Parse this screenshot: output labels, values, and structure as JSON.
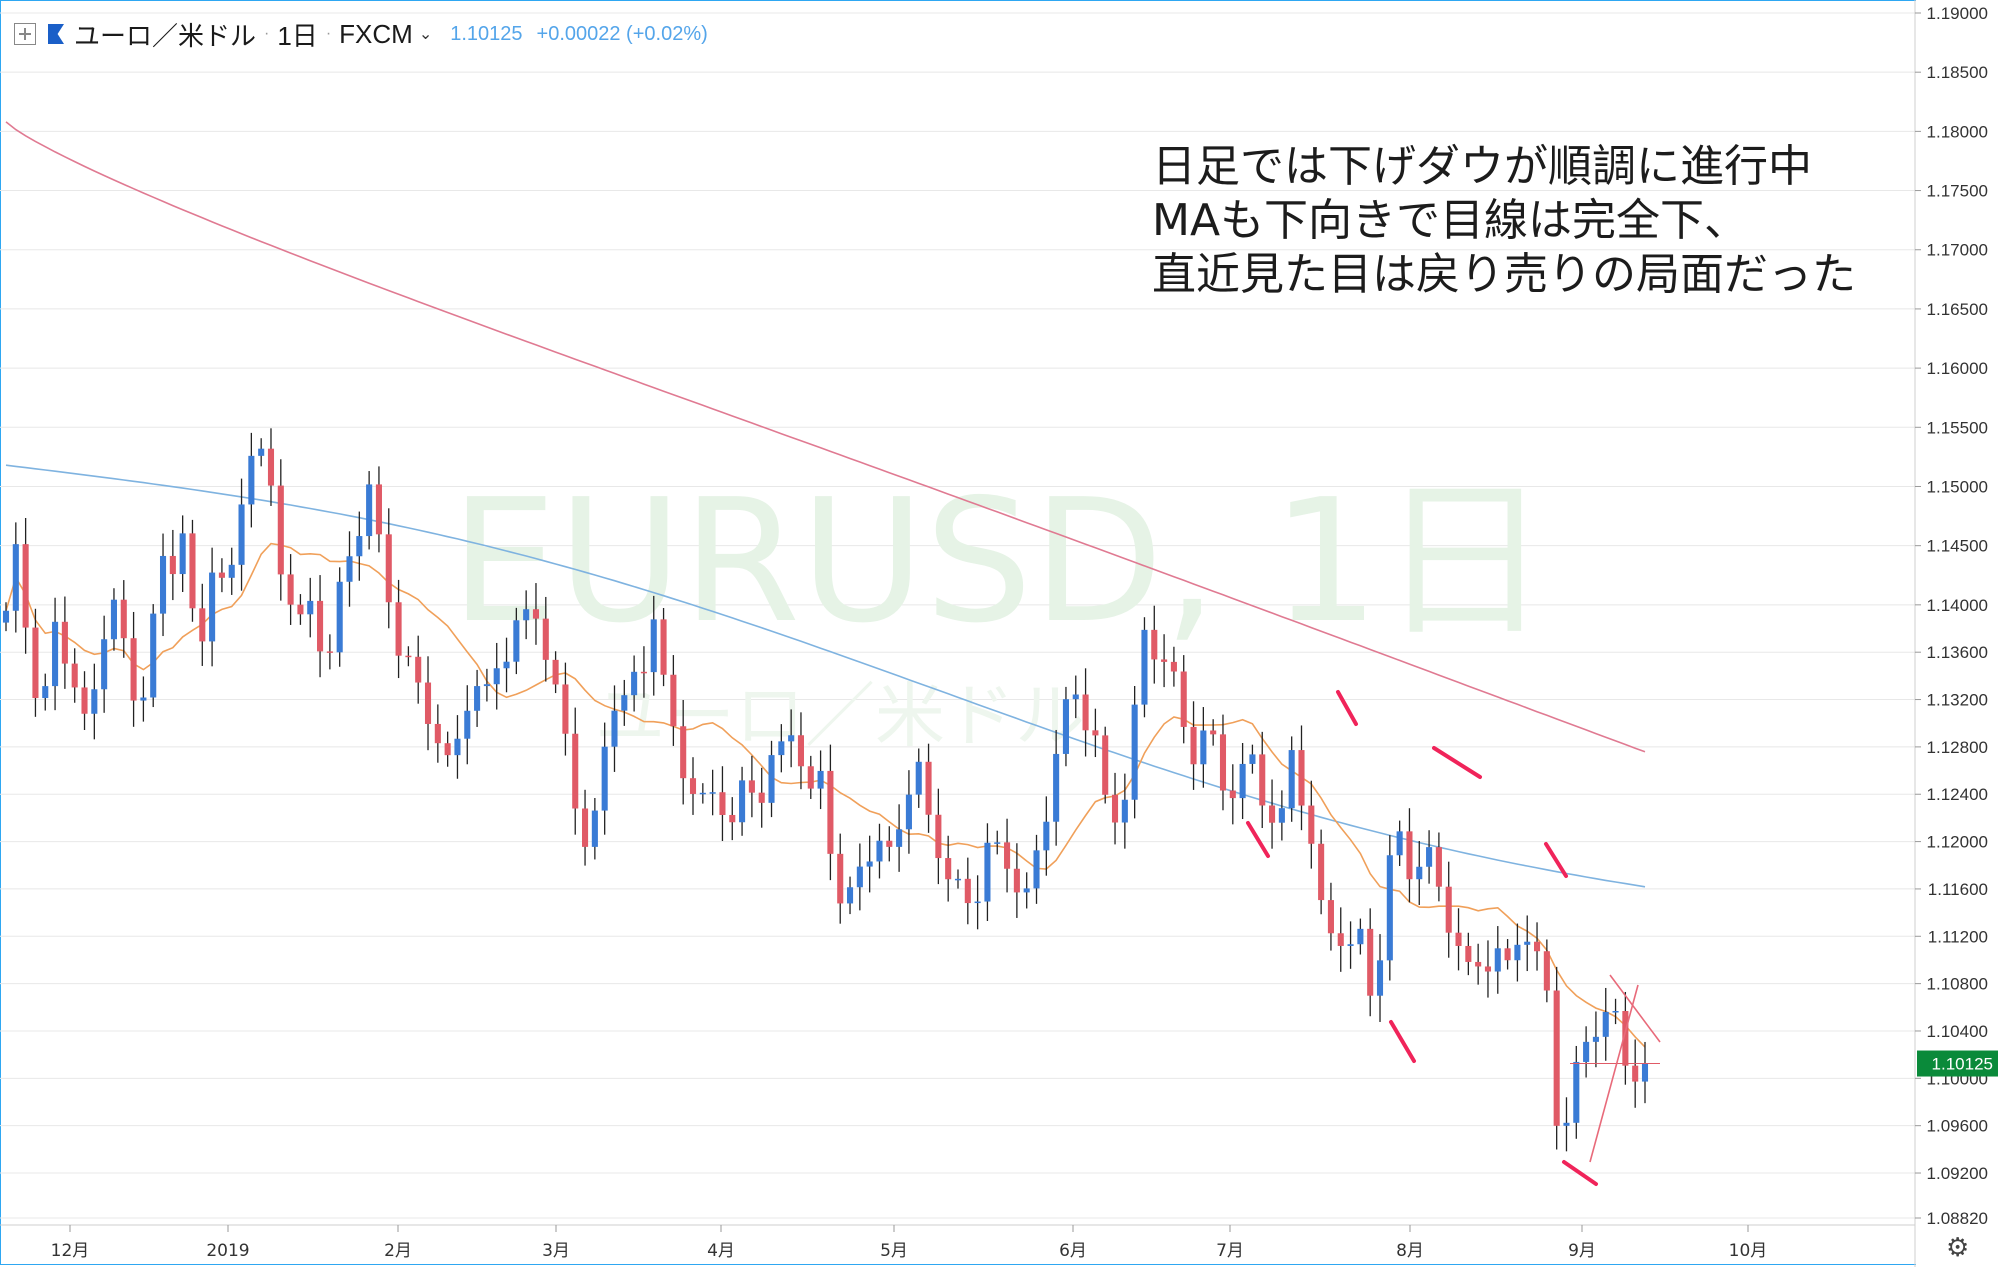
{
  "header": {
    "symbol": "ユーロ／米ドル",
    "interval": "1日",
    "source": "FXCM",
    "last_price": "1.10125",
    "change": "+0.00022 (+0.02%)"
  },
  "watermark": {
    "main": "EURUSD, 1日",
    "sub": "ユーロ／米ドル"
  },
  "annotation": [
    "日足では下げダウが順調に進行中",
    "MAも下向きで目線は完全下、",
    "直近見た目は戻り売りの局面だった"
  ],
  "price_label": "1.10125",
  "colors": {
    "up": "#3a7bd5",
    "down": "#e05a66",
    "ma_short": "#f0a05a",
    "ma_mid": "#7fb3e0",
    "ma_long": "#e07a92",
    "marks": "#f0245a",
    "last_badge": "#0a8a3a",
    "grid": "#e8e8e8"
  },
  "chart_data": {
    "type": "candlestick",
    "title": "EURUSD, 1日",
    "y_axis": {
      "ticks": [
        "1.19000",
        "1.18500",
        "1.18000",
        "1.17500",
        "1.17000",
        "1.16500",
        "1.16000",
        "1.15500",
        "1.15000",
        "1.14500",
        "1.14000",
        "1.13600",
        "1.13200",
        "1.12800",
        "1.12400",
        "1.12000",
        "1.11600",
        "1.11200",
        "1.10800",
        "1.10400",
        "1.10000",
        "1.09600",
        "1.09200",
        "1.08820"
      ],
      "range": [
        1.0882,
        1.19
      ]
    },
    "x_axis": {
      "ticks": [
        "12月",
        "2019",
        "2月",
        "3月",
        "4月",
        "5月",
        "6月",
        "7月",
        "8月",
        "9月",
        "10月"
      ]
    },
    "last_price": 1.10125,
    "ohlc_path": [
      1.1395,
      1.144,
      1.1385,
      1.134,
      1.129,
      1.136,
      1.139,
      1.135,
      1.1345,
      1.13,
      1.133,
      1.138,
      1.141,
      1.136,
      1.133,
      1.1285,
      1.137,
      1.14,
      1.145,
      1.144,
      1.148,
      1.1395,
      1.135,
      1.143,
      1.144,
      1.138,
      1.145,
      1.15,
      1.1555,
      1.153,
      1.1495,
      1.144,
      1.142,
      1.138,
      1.1395,
      1.138,
      1.134,
      1.137,
      1.142,
      1.1445,
      1.148,
      1.151,
      1.146,
      1.142,
      1.1375,
      1.135,
      1.1335,
      1.13,
      1.13,
      1.128,
      1.126,
      1.129,
      1.133,
      1.1345,
      1.132,
      1.134,
      1.136,
      1.1355,
      1.1385,
      1.1375,
      1.1395,
      1.136,
      1.133,
      1.13,
      1.126,
      1.121,
      1.119,
      1.124,
      1.13,
      1.132,
      1.131,
      1.133,
      1.135,
      1.141,
      1.135,
      1.131,
      1.1275,
      1.126,
      1.123,
      1.122,
      1.1235,
      1.1225,
      1.121,
      1.124,
      1.1255,
      1.124,
      1.128,
      1.1265,
      1.1295,
      1.13,
      1.125,
      1.122,
      1.125,
      1.12,
      1.115,
      1.1145,
      1.1185,
      1.12,
      1.1205,
      1.1195,
      1.118,
      1.122,
      1.124,
      1.125,
      1.1215,
      1.1205,
      1.118,
      1.117,
      1.116,
      1.1155,
      1.117,
      1.12,
      1.118,
      1.1175,
      1.116,
      1.114,
      1.1175,
      1.1215,
      1.126,
      1.131,
      1.132,
      1.133,
      1.13,
      1.128,
      1.122,
      1.121,
      1.123,
      1.127,
      1.137,
      1.1385,
      1.1365,
      1.1365,
      1.133,
      1.129,
      1.127,
      1.1285,
      1.128,
      1.1245,
      1.124,
      1.126,
      1.127,
      1.1275,
      1.124,
      1.1225,
      1.1215,
      1.127,
      1.124,
      1.121,
      1.1155,
      1.111,
      1.114,
      1.1125,
      1.1115,
      1.1125,
      1.108,
      1.11,
      1.1165,
      1.12,
      1.118,
      1.116,
      1.1195,
      1.118,
      1.1165,
      1.114,
      1.1115,
      1.109,
      1.11,
      1.109,
      1.11,
      1.108,
      1.109,
      1.114,
      1.1115,
      1.11,
      1.108,
      1.098,
      1.096,
      1.099,
      1.103,
      1.1025,
      1.105,
      1.1035,
      1.105,
      1.1015,
      1.101,
      1.10125
    ],
    "candles_shown": 168,
    "moving_averages": [
      {
        "name": "short",
        "color": "#f0a05a"
      },
      {
        "name": "mid",
        "color": "#7fb3e0"
      },
      {
        "name": "long",
        "color": "#e07a92"
      }
    ]
  }
}
